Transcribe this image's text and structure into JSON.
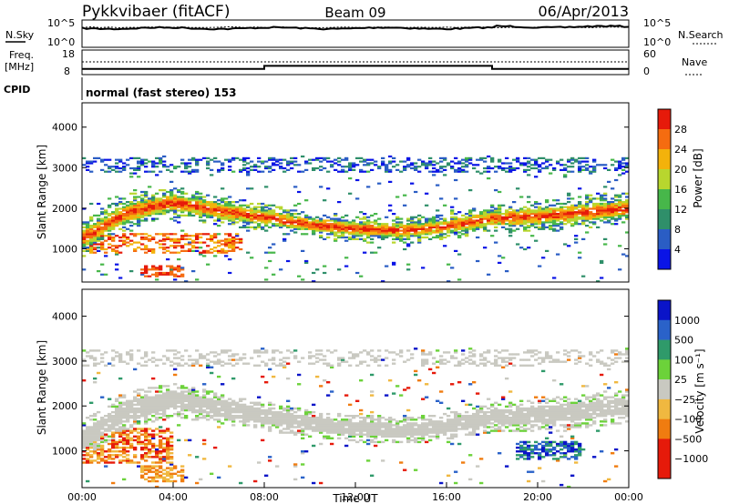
{
  "header": {
    "station": "Pykkvibaer (fitACF)",
    "beam": "Beam 09",
    "date": "06/Apr/2013"
  },
  "noise_panel": {
    "left_label": "N.Sky",
    "right_label": "N.Search",
    "left_ticks": [
      "10^5",
      "10^0"
    ],
    "right_ticks": [
      "10^5",
      "10^0"
    ]
  },
  "freq_panel": {
    "left_label_1": "Freq.",
    "left_label_2": "[MHz]",
    "right_label": "Nave",
    "left_ticks": [
      "18",
      "8"
    ],
    "right_ticks": [
      "60",
      "0"
    ],
    "freq_mhz": [
      {
        "from_ut": 0,
        "to_ut": 8,
        "value": 10.2
      },
      {
        "from_ut": 8,
        "to_ut": 18,
        "value": 11.6
      },
      {
        "from_ut": 18,
        "to_ut": 24,
        "value": 10.2
      }
    ]
  },
  "cpid_panel": {
    "label": "CPID",
    "mode_text": "normal (fast stereo) 153"
  },
  "chart_data": [
    {
      "type": "heatmap",
      "name_ref": "power",
      "ylabel": "Slant Range [km]",
      "xlim": [
        "00:00",
        "24:00"
      ],
      "ylim": [
        180,
        4600
      ],
      "y_ticks": [
        "1000",
        "2000",
        "3000",
        "4000"
      ],
      "colorbar_label": "Power [dB]",
      "colorbar_ticks": [
        "4",
        "8",
        "12",
        "16",
        "20",
        "24",
        "28"
      ],
      "colors": [
        "#0a14e6",
        "#2a5dc4",
        "#2f8f6a",
        "#47b74a",
        "#b8d62e",
        "#f3b20b",
        "#f56c10",
        "#e61a0a"
      ],
      "grid": false,
      "echo_band_km": [
        {
          "ut": 0.0,
          "center": 1250,
          "width": 420
        },
        {
          "ut": 2.0,
          "center": 1900,
          "width": 420
        },
        {
          "ut": 4.0,
          "center": 2150,
          "width": 380
        },
        {
          "ut": 6.0,
          "center": 1950,
          "width": 350
        },
        {
          "ut": 8.0,
          "center": 1780,
          "width": 320
        },
        {
          "ut": 10.0,
          "center": 1600,
          "width": 300
        },
        {
          "ut": 12.0,
          "center": 1500,
          "width": 300
        },
        {
          "ut": 14.0,
          "center": 1450,
          "width": 300
        },
        {
          "ut": 16.0,
          "center": 1550,
          "width": 300
        },
        {
          "ut": 18.0,
          "center": 1750,
          "width": 320
        },
        {
          "ut": 20.0,
          "center": 1800,
          "width": 350
        },
        {
          "ut": 22.0,
          "center": 1900,
          "width": 380
        },
        {
          "ut": 24.0,
          "center": 2000,
          "width": 380
        }
      ]
    },
    {
      "type": "heatmap",
      "name_ref": "velocity",
      "xlabel": "Time UT",
      "ylabel": "Slant Range [km]",
      "xlim": [
        "00:00",
        "24:00"
      ],
      "ylim": [
        180,
        4600
      ],
      "x_ticks": [
        "00:00",
        "04:00",
        "08:00",
        "12:00",
        "16:00",
        "20:00",
        "00:00"
      ],
      "y_ticks": [
        "1000",
        "2000",
        "3000",
        "4000"
      ],
      "colorbar_label": "Velocity [m s⁻¹]",
      "colorbar_ticks": [
        "1000",
        "500",
        "100",
        "25",
        "−25",
        "−100",
        "−500",
        "−1000"
      ],
      "colors": [
        "#0a14c8",
        "#2a62c9",
        "#2f9a6a",
        "#6cd23a",
        "#c9c9c1",
        "#f0b840",
        "#f07c10",
        "#e61a0a"
      ],
      "ground_scatter_color": "#c9c9c1",
      "grid": false
    }
  ]
}
